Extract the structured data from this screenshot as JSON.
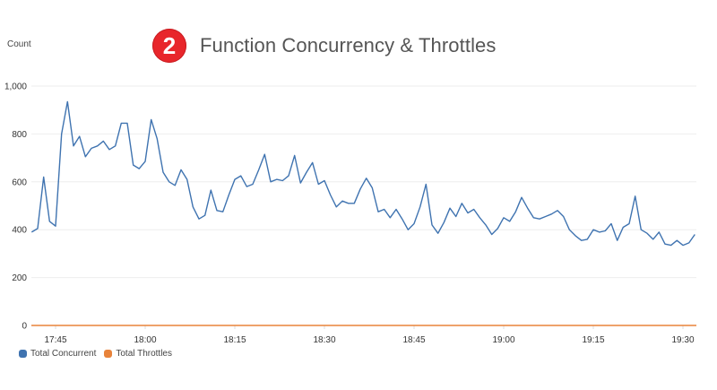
{
  "header": {
    "badge_number": "2",
    "title": "Function Concurrency & Throttles"
  },
  "colors": {
    "badge": "#e8262b",
    "concurrent": "#3f73b0",
    "throttles": "#e8833a",
    "grid": "#eeeeee"
  },
  "legend": {
    "items": [
      {
        "label": "Total Concurrent",
        "color": "#3f73b0"
      },
      {
        "label": "Total Throttles",
        "color": "#e8833a"
      }
    ]
  },
  "chart_data": {
    "type": "line",
    "title": "Function Concurrency & Throttles",
    "xlabel": "",
    "ylabel": "Count",
    "ylim": [
      0,
      1000
    ],
    "yticks": [
      0,
      200,
      400,
      600,
      800,
      1000
    ],
    "ytick_labels": [
      "0",
      "200",
      "400",
      "600",
      "800",
      "1,000"
    ],
    "xticks": [
      "17:45",
      "18:00",
      "18:15",
      "18:30",
      "18:45",
      "19:00",
      "19:15",
      "19:30"
    ],
    "grid": true,
    "legend_position": "bottom-left",
    "x_start": "17:41",
    "x_interval_minutes": 1,
    "series": [
      {
        "name": "Total Concurrent",
        "values": [
          390,
          405,
          620,
          435,
          415,
          800,
          935,
          750,
          790,
          705,
          740,
          750,
          770,
          735,
          750,
          845,
          845,
          670,
          655,
          685,
          860,
          780,
          640,
          600,
          585,
          650,
          610,
          495,
          445,
          460,
          565,
          480,
          475,
          545,
          610,
          625,
          580,
          590,
          650,
          715,
          600,
          610,
          605,
          625,
          710,
          595,
          640,
          680,
          590,
          605,
          545,
          495,
          520,
          510,
          510,
          570,
          615,
          575,
          475,
          485,
          450,
          485,
          445,
          400,
          425,
          495,
          590,
          420,
          385,
          430,
          490,
          455,
          510,
          470,
          485,
          450,
          420,
          380,
          405,
          450,
          435,
          475,
          535,
          490,
          450,
          445,
          455,
          465,
          480,
          455,
          400,
          375,
          355,
          360,
          400,
          390,
          395,
          425,
          355,
          410,
          425,
          540,
          400,
          385,
          360,
          390,
          340,
          335,
          355,
          335,
          345,
          380
        ]
      },
      {
        "name": "Total Throttles",
        "values": [
          0,
          0,
          0,
          0,
          0,
          0,
          0,
          0,
          0,
          0,
          0,
          0,
          0,
          0,
          0,
          0,
          0,
          0,
          0,
          0,
          0,
          0,
          0,
          0,
          0,
          0,
          0,
          0,
          0,
          0,
          0,
          0,
          0,
          0,
          0,
          0,
          0,
          0,
          0,
          0,
          0,
          0,
          0,
          0,
          0,
          0,
          0,
          0,
          0,
          0,
          0,
          0,
          0,
          0,
          0,
          0,
          0,
          0,
          0,
          0,
          0,
          0,
          0,
          0,
          0,
          0,
          0,
          0,
          0,
          0,
          0,
          0,
          0,
          0,
          0,
          0,
          0,
          0,
          0,
          0,
          0,
          0,
          0,
          0,
          0,
          0,
          0,
          0,
          0,
          0,
          0,
          0,
          0,
          0,
          0,
          0,
          0,
          0,
          0,
          0,
          0,
          0,
          0,
          0,
          0,
          0,
          0,
          0,
          0,
          0,
          0,
          0
        ]
      }
    ]
  }
}
